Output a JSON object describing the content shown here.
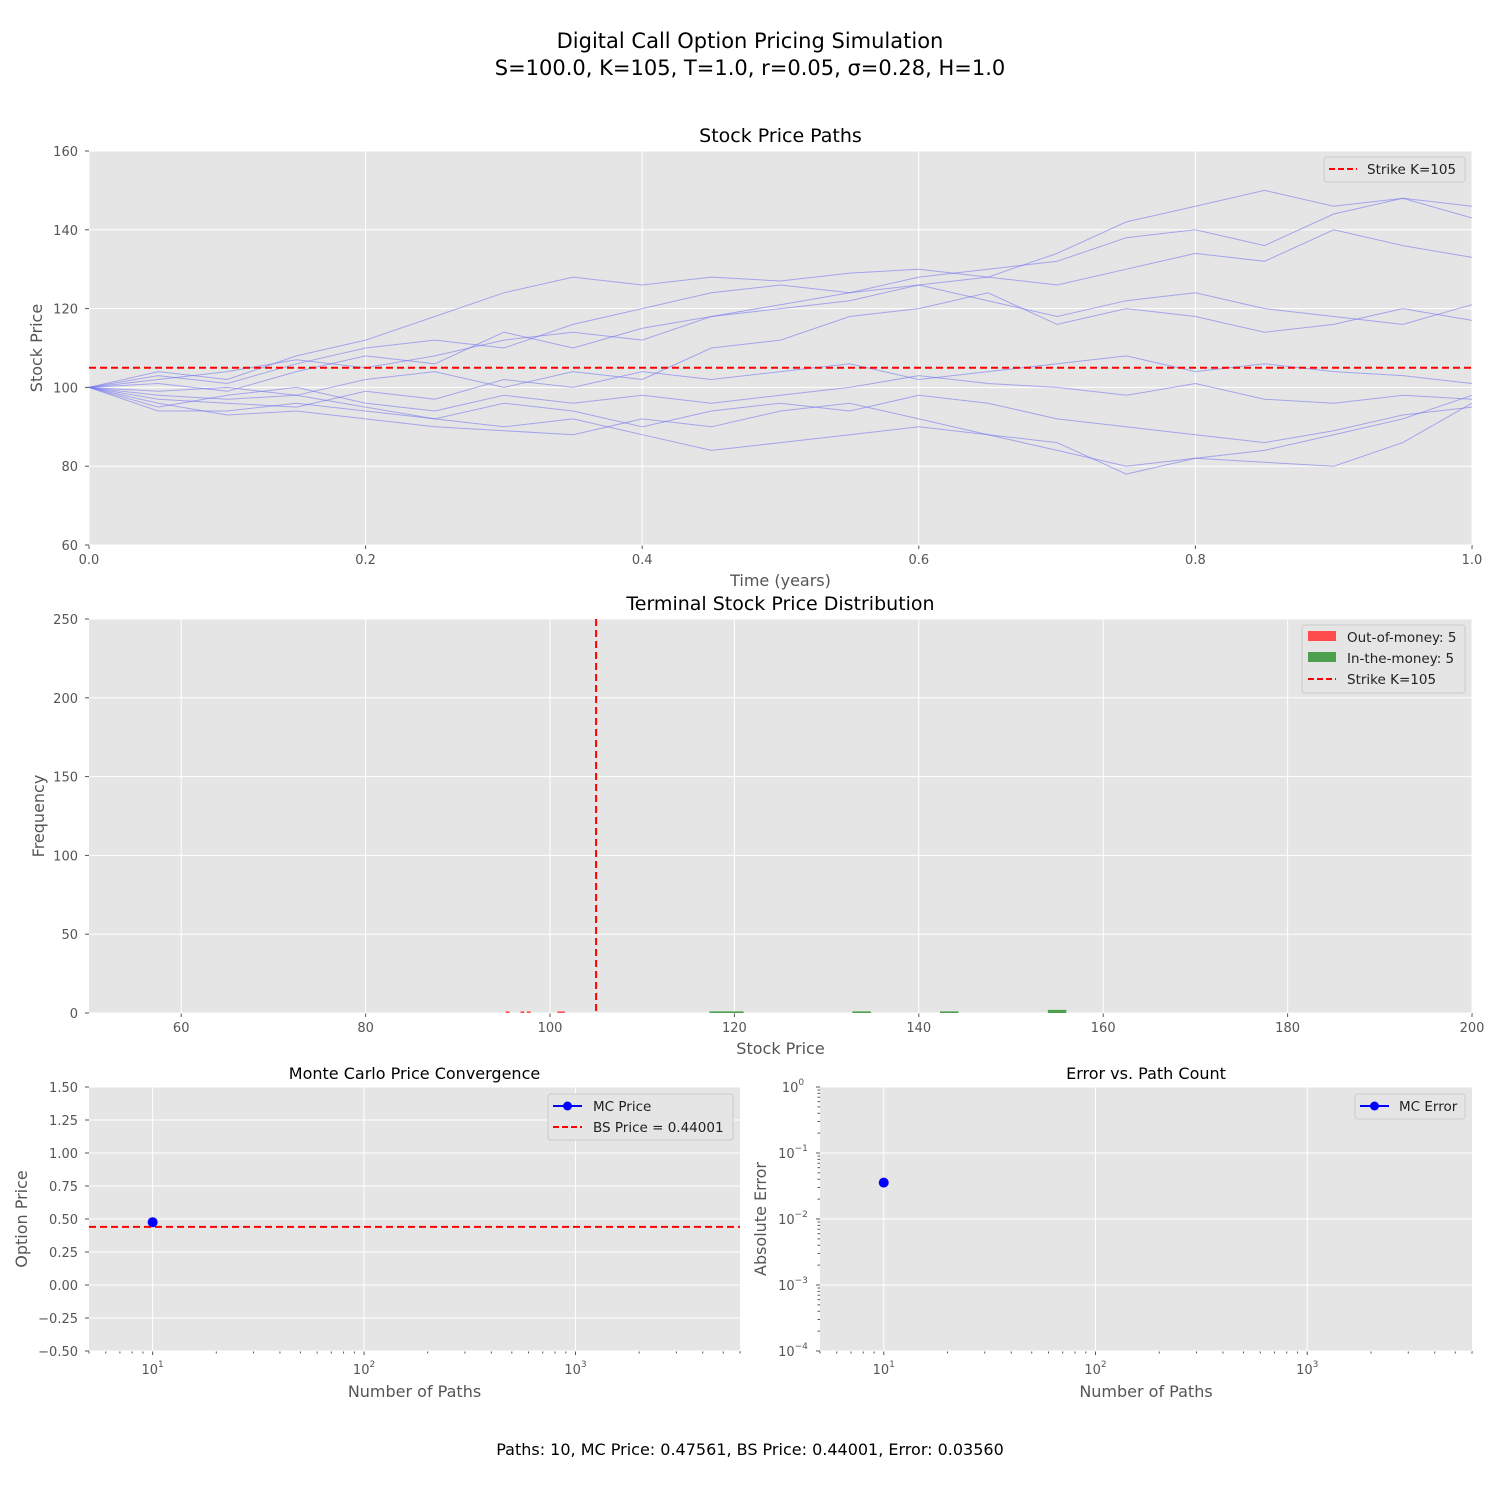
{
  "figure": {
    "title_line1": "Digital Call Option Pricing Simulation",
    "title_line2": "S=100.0, K=105, T=1.0, r=0.05, σ=0.28, H=1.0",
    "footer": "Paths: 10, MC Price: 0.47561, BS Price: 0.44001, Error: 0.03560",
    "colors": {
      "axes_bg": "#e5e5e5",
      "grid": "#ffffff",
      "path_line": "#6f6ff0",
      "strike": "#ff0000",
      "otm": "#ff4d4d",
      "itm": "#4c9f4c",
      "marker": "#0000ff"
    }
  },
  "chart_data": [
    {
      "id": "paths",
      "type": "line",
      "title": "Stock Price Paths",
      "xlabel": "Time (years)",
      "ylabel": "Stock Price",
      "xlim": [
        0,
        1
      ],
      "ylim": [
        60,
        160
      ],
      "xticks": [
        0,
        0.2,
        0.4,
        0.6,
        0.8,
        1.0
      ],
      "xtick_labels": [
        "0.0",
        "0.2",
        "0.4",
        "0.6",
        "0.8",
        "1.0"
      ],
      "yticks": [
        60,
        80,
        100,
        120,
        140,
        160
      ],
      "grid": true,
      "legend_position": "upper-right",
      "legend": [
        "Strike K=105"
      ],
      "strike": 105,
      "x": [
        0,
        0.05,
        0.1,
        0.15,
        0.2,
        0.25,
        0.3,
        0.35,
        0.4,
        0.45,
        0.5,
        0.55,
        0.6,
        0.65,
        0.7,
        0.75,
        0.8,
        0.85,
        0.9,
        0.95,
        1.0
      ],
      "series": [
        {
          "values": [
            100,
            104,
            102,
            108,
            112,
            118,
            124,
            128,
            126,
            128,
            127,
            129,
            130,
            128,
            134,
            142,
            146,
            150,
            146,
            148,
            143
          ]
        },
        {
          "values": [
            100,
            103,
            101,
            106,
            110,
            112,
            110,
            116,
            120,
            124,
            126,
            124,
            128,
            130,
            132,
            138,
            140,
            136,
            144,
            148,
            146
          ]
        },
        {
          "values": [
            100,
            102,
            104,
            107,
            105,
            108,
            112,
            114,
            112,
            118,
            120,
            122,
            126,
            128,
            126,
            130,
            134,
            132,
            140,
            136,
            133
          ]
        },
        {
          "values": [
            100,
            101,
            99,
            104,
            108,
            106,
            114,
            110,
            115,
            118,
            121,
            124,
            126,
            122,
            118,
            122,
            124,
            120,
            118,
            116,
            121
          ]
        },
        {
          "values": [
            100,
            99,
            100,
            98,
            102,
            104,
            100,
            104,
            102,
            110,
            112,
            118,
            120,
            124,
            116,
            120,
            118,
            114,
            116,
            120,
            117
          ]
        },
        {
          "values": [
            100,
            97,
            96,
            95,
            99,
            97,
            102,
            100,
            104,
            102,
            104,
            106,
            102,
            104,
            106,
            108,
            104,
            106,
            104,
            103,
            101
          ]
        },
        {
          "values": [
            100,
            95,
            98,
            100,
            96,
            94,
            98,
            96,
            98,
            96,
            98,
            100,
            103,
            101,
            100,
            98,
            101,
            97,
            96,
            98,
            97
          ]
        },
        {
          "values": [
            100,
            94,
            94,
            96,
            94,
            92,
            96,
            94,
            90,
            94,
            96,
            94,
            98,
            96,
            92,
            90,
            88,
            86,
            89,
            93,
            95
          ]
        },
        {
          "values": [
            100,
            96,
            93,
            94,
            92,
            90,
            89,
            88,
            92,
            90,
            94,
            96,
            92,
            88,
            86,
            78,
            82,
            84,
            88,
            92,
            98
          ]
        },
        {
          "values": [
            100,
            98,
            97,
            98,
            95,
            92,
            90,
            92,
            88,
            84,
            86,
            88,
            90,
            88,
            84,
            80,
            82,
            81,
            80,
            86,
            96
          ]
        }
      ]
    },
    {
      "id": "hist",
      "type": "bar",
      "title": "Terminal Stock Price Distribution",
      "xlabel": "Stock Price",
      "ylabel": "Frequency",
      "xlim": [
        50,
        200
      ],
      "ylim": [
        0,
        250
      ],
      "xticks": [
        60,
        80,
        100,
        120,
        140,
        160,
        180,
        200
      ],
      "yticks": [
        0,
        50,
        100,
        150,
        200,
        250
      ],
      "grid": true,
      "legend_position": "upper-right",
      "legend": [
        "Out-of-money: 5",
        "In-the-money: 5",
        "Strike K=105"
      ],
      "strike": 105,
      "otm_bins": [
        {
          "x0": 95.2,
          "x1": 95.6,
          "count": 1
        },
        {
          "x0": 96.8,
          "x1": 97.2,
          "count": 1
        },
        {
          "x0": 97.5,
          "x1": 97.9,
          "count": 1
        },
        {
          "x0": 100.8,
          "x1": 101.2,
          "count": 1
        },
        {
          "x0": 101.2,
          "x1": 101.6,
          "count": 1
        }
      ],
      "itm_bins": [
        {
          "x0": 117.3,
          "x1": 121.0,
          "count": 1
        },
        {
          "x0": 132.8,
          "x1": 134.8,
          "count": 1
        },
        {
          "x0": 142.3,
          "x1": 144.3,
          "count": 1
        },
        {
          "x0": 154.0,
          "x1": 156.0,
          "count": 2
        }
      ]
    },
    {
      "id": "conv",
      "type": "scatter",
      "title": "Monte Carlo Price Convergence",
      "xlabel": "Number of Paths",
      "ylabel": "Option Price",
      "xscale": "log",
      "xlim": [
        5,
        6000
      ],
      "ylim": [
        -0.5,
        1.5
      ],
      "xticks": [
        10,
        100,
        1000
      ],
      "xtick_exponents": [
        "1",
        "2",
        "3"
      ],
      "yticks": [
        -0.5,
        -0.25,
        0.0,
        0.25,
        0.5,
        0.75,
        1.0,
        1.25,
        1.5
      ],
      "ytick_labels": [
        "−0.50",
        "−0.25",
        "0.00",
        "0.25",
        "0.50",
        "0.75",
        "1.00",
        "1.25",
        "1.50"
      ],
      "grid": true,
      "legend_position": "upper-right",
      "legend": [
        "MC Price",
        "BS Price = 0.44001"
      ],
      "bs_price": 0.44001,
      "points": [
        {
          "x": 10,
          "y": 0.47561
        }
      ]
    },
    {
      "id": "err",
      "type": "scatter",
      "title": "Error vs. Path Count",
      "xlabel": "Number of Paths",
      "ylabel": "Absolute Error",
      "xscale": "log",
      "yscale": "log",
      "xlim": [
        5,
        6000
      ],
      "ylim": [
        0.0001,
        1
      ],
      "xticks": [
        10,
        100,
        1000
      ],
      "xtick_exponents": [
        "1",
        "2",
        "3"
      ],
      "yticks": [
        0.0001,
        0.001,
        0.01,
        0.1,
        1
      ],
      "ytick_exponents": [
        "−4",
        "−3",
        "−2",
        "−1",
        "0"
      ],
      "grid": true,
      "legend_position": "upper-right",
      "legend": [
        "MC Error"
      ],
      "points": [
        {
          "x": 10,
          "y": 0.0356
        }
      ]
    }
  ]
}
